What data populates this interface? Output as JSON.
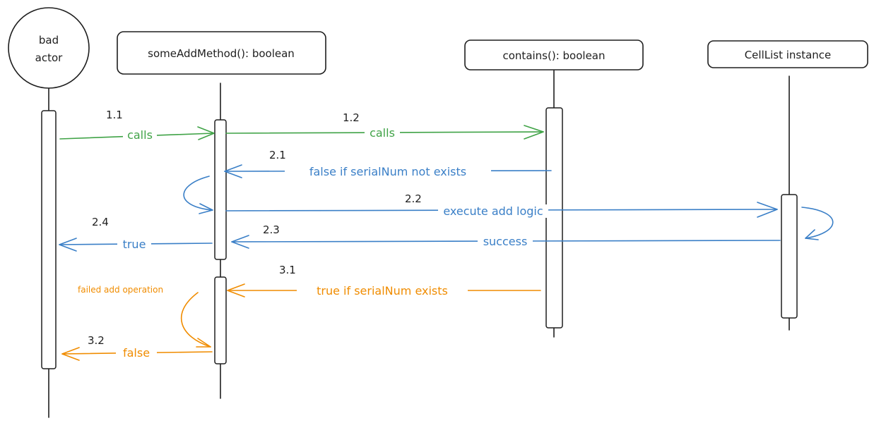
{
  "participants": {
    "actor": {
      "line1": "bad",
      "line2": "actor"
    },
    "add_method": "someAddMethod(): boolean",
    "contains": "contains(): boolean",
    "celllist": "CellList instance"
  },
  "messages": {
    "m1_1": {
      "num": "1.1",
      "label": "calls"
    },
    "m1_2": {
      "num": "1.2",
      "label": "calls"
    },
    "m2_1": {
      "num": "2.1",
      "label": "false if serialNum not exists"
    },
    "m2_2": {
      "num": "2.2",
      "label": "execute add logic"
    },
    "m2_3": {
      "num": "2.3",
      "label": "success"
    },
    "m2_4": {
      "num": "2.4",
      "label": "true"
    },
    "m3_1": {
      "num": "3.1",
      "label": "true if serialNum exists"
    },
    "m3_2": {
      "num": "3.2",
      "label": "false"
    },
    "note": "failed add operation"
  },
  "colors": {
    "green": "#40a347",
    "blue": "#3a7fc7",
    "orange": "#f08c00",
    "ink": "#1e1e1e"
  }
}
